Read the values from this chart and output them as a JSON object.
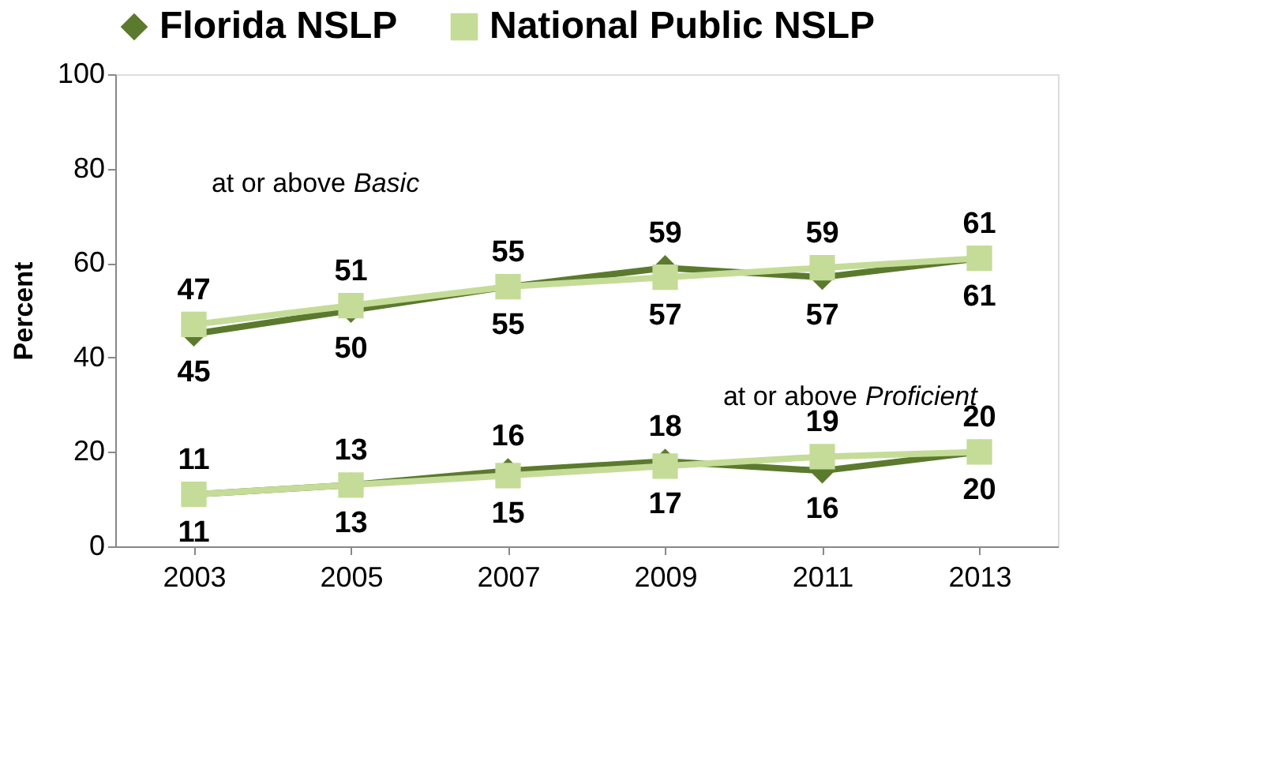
{
  "chart_data": {
    "type": "line",
    "ylabel": "Percent",
    "categories": [
      "2003",
      "2005",
      "2007",
      "2009",
      "2011",
      "2013"
    ],
    "series": [
      {
        "name": "Florida NSLP",
        "color": "#5b7a2e",
        "marker": "diamond",
        "values": [
          45,
          50,
          55,
          59,
          57,
          61
        ]
      },
      {
        "color": "#5b7a2e",
        "marker": "diamond",
        "values": [
          11,
          13,
          16,
          18,
          16,
          20
        ]
      },
      {
        "name": "National Public NSLP",
        "color": "#c4dc98",
        "marker": "square",
        "values": [
          47,
          51,
          55,
          57,
          59,
          61
        ]
      },
      {
        "color": "#c4dc98",
        "marker": "square",
        "values": [
          11,
          13,
          15,
          17,
          19,
          20
        ]
      }
    ],
    "ylim": [
      0,
      100
    ],
    "yticks": [
      0,
      20,
      40,
      60,
      80,
      100
    ],
    "grid": false,
    "legend": "top",
    "data_labels": true,
    "line_style": "solid",
    "annotations": [
      "at or above Basic",
      "at or above Proficient"
    ]
  }
}
